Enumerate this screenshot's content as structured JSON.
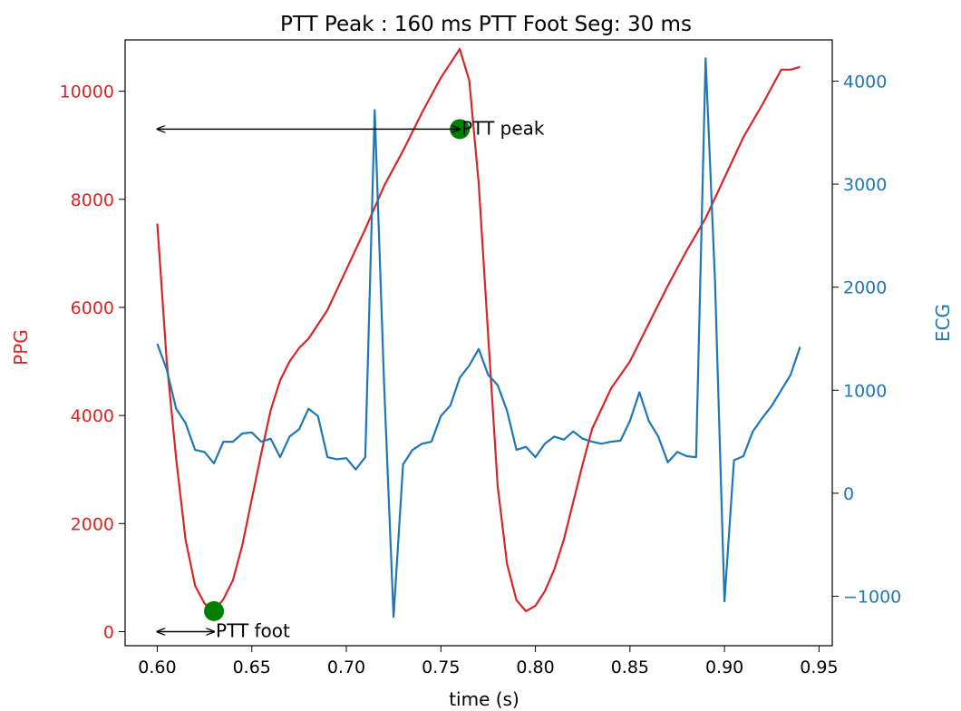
{
  "chart_data": {
    "type": "line",
    "title": "PTT Peak :  160 ms   PTT Foot Seg:   30 ms",
    "xlabel": "time (s)",
    "xlim": [
      0.583,
      0.957
    ],
    "x_ticks": [
      0.6,
      0.65,
      0.7,
      0.75,
      0.8,
      0.85,
      0.9,
      0.95
    ],
    "x_tick_labels": [
      "0.60",
      "0.65",
      "0.70",
      "0.75",
      "0.80",
      "0.85",
      "0.90",
      "0.95"
    ],
    "left_axis": {
      "label": "PPG",
      "color": "#d62728",
      "ylim": [
        -260,
        10950
      ],
      "ticks": [
        0,
        2000,
        4000,
        6000,
        8000,
        10000
      ],
      "tick_labels": [
        "0",
        "2000",
        "4000",
        "6000",
        "8000",
        "10000"
      ]
    },
    "right_axis": {
      "label": "ECG",
      "color": "#1f77b4",
      "ylim": [
        -1480,
        4400
      ],
      "ticks": [
        -1000,
        0,
        1000,
        2000,
        3000,
        4000
      ],
      "tick_labels": [
        "−1000",
        "0",
        "1000",
        "2000",
        "3000",
        "4000"
      ]
    },
    "series": [
      {
        "axis": "left",
        "color": "#d62728",
        "x": [
          0.6,
          0.605,
          0.61,
          0.615,
          0.62,
          0.625,
          0.63,
          0.635,
          0.64,
          0.645,
          0.65,
          0.655,
          0.66,
          0.665,
          0.67,
          0.675,
          0.68,
          0.69,
          0.7,
          0.71,
          0.72,
          0.73,
          0.74,
          0.75,
          0.76,
          0.765,
          0.77,
          0.775,
          0.78,
          0.785,
          0.79,
          0.795,
          0.8,
          0.805,
          0.81,
          0.815,
          0.82,
          0.825,
          0.83,
          0.84,
          0.85,
          0.86,
          0.87,
          0.88,
          0.89,
          0.9,
          0.91,
          0.92,
          0.93,
          0.935,
          0.94
        ],
        "values": [
          7550,
          5000,
          3200,
          1700,
          850,
          520,
          380,
          600,
          950,
          1600,
          2450,
          3300,
          4100,
          4650,
          5000,
          5250,
          5420,
          5950,
          6700,
          7450,
          8250,
          8900,
          9600,
          10250,
          10780,
          10200,
          8300,
          5500,
          2700,
          1250,
          580,
          380,
          480,
          750,
          1150,
          1700,
          2400,
          3100,
          3750,
          4500,
          5000,
          5700,
          6400,
          7050,
          7650,
          8400,
          9150,
          9750,
          10400,
          10400,
          10450
        ]
      },
      {
        "axis": "right",
        "color": "#1f77b4",
        "x": [
          0.6,
          0.605,
          0.61,
          0.615,
          0.62,
          0.625,
          0.63,
          0.635,
          0.64,
          0.645,
          0.65,
          0.655,
          0.66,
          0.665,
          0.67,
          0.675,
          0.68,
          0.685,
          0.69,
          0.695,
          0.7,
          0.705,
          0.71,
          0.715,
          0.72,
          0.725,
          0.73,
          0.735,
          0.74,
          0.745,
          0.75,
          0.755,
          0.76,
          0.765,
          0.77,
          0.775,
          0.78,
          0.785,
          0.79,
          0.795,
          0.8,
          0.805,
          0.81,
          0.815,
          0.82,
          0.825,
          0.83,
          0.835,
          0.84,
          0.845,
          0.85,
          0.855,
          0.86,
          0.865,
          0.87,
          0.875,
          0.88,
          0.885,
          0.89,
          0.895,
          0.9,
          0.905,
          0.91,
          0.915,
          0.92,
          0.925,
          0.93,
          0.935,
          0.94
        ],
        "values": [
          1450,
          1200,
          820,
          680,
          420,
          400,
          290,
          500,
          500,
          580,
          590,
          500,
          530,
          350,
          550,
          620,
          820,
          750,
          350,
          330,
          340,
          230,
          350,
          3720,
          1050,
          -1200,
          280,
          420,
          480,
          500,
          750,
          850,
          1120,
          1240,
          1400,
          1150,
          1050,
          800,
          420,
          450,
          350,
          480,
          550,
          520,
          600,
          530,
          500,
          480,
          500,
          510,
          700,
          980,
          700,
          550,
          300,
          400,
          360,
          350,
          4220,
          2050,
          -1050,
          320,
          360,
          600,
          730,
          850,
          1000,
          1150,
          1420
        ]
      }
    ],
    "markers": [
      {
        "x": 0.63,
        "y": 380,
        "axis": "left",
        "color": "#008000"
      },
      {
        "x": 0.76,
        "y": 9300,
        "axis": "left",
        "color": "#008000"
      }
    ],
    "annotations": [
      {
        "text": "PTT peak",
        "x1": 0.6,
        "x2": 0.76,
        "y": 9300,
        "axis": "left"
      },
      {
        "text": "PTT foot",
        "x1": 0.6,
        "x2": 0.63,
        "y": 0,
        "axis": "left"
      }
    ]
  }
}
